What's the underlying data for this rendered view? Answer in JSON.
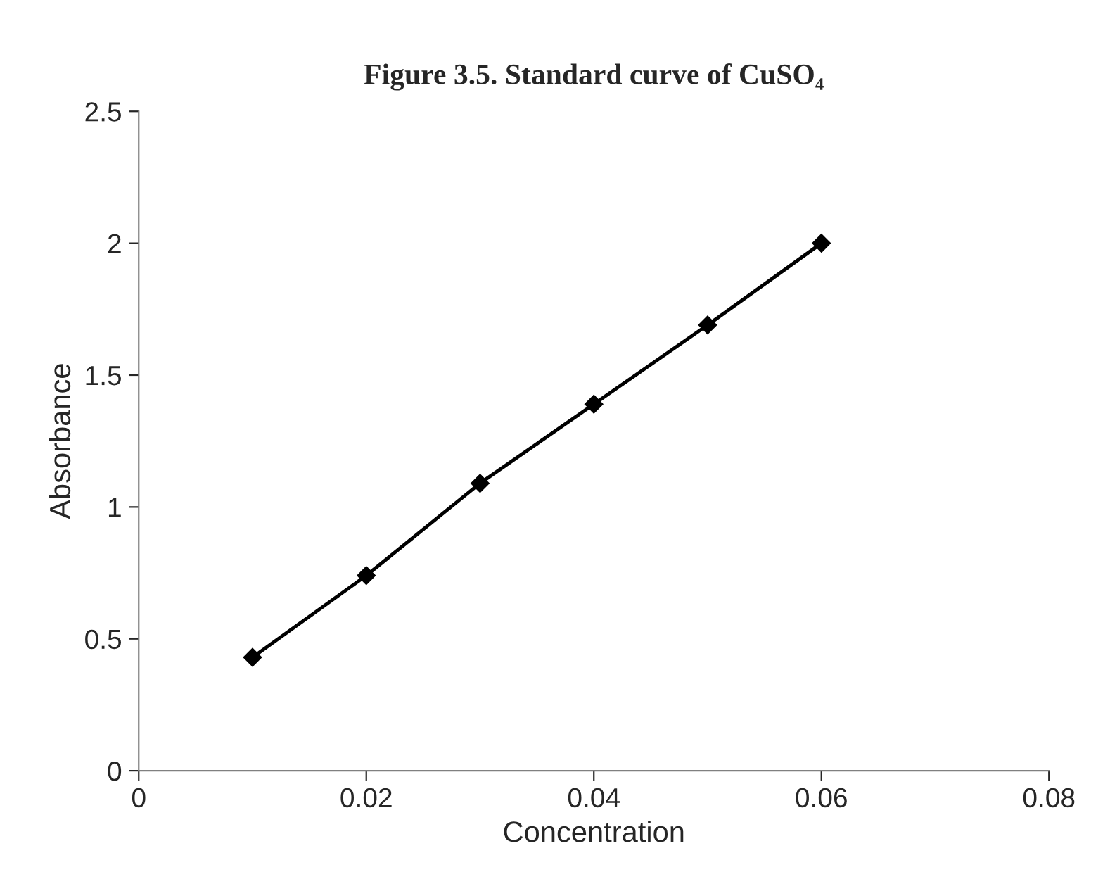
{
  "chart_data": {
    "type": "line",
    "title": "Figure 3.5. Standard curve of CuSO₄",
    "xlabel": "Concentration",
    "ylabel": "Absorbance",
    "x": [
      0.01,
      0.02,
      0.03,
      0.04,
      0.05,
      0.06
    ],
    "series": [
      {
        "color": "#000000",
        "values": [
          0.43,
          0.74,
          1.09,
          1.39,
          1.69,
          2.0
        ]
      }
    ],
    "xlim": [
      0,
      0.08
    ],
    "xticks": [
      0,
      0.02,
      0.04,
      0.06,
      0.08
    ],
    "ylim": [
      0,
      2.5
    ],
    "yticks": [
      0,
      0.5,
      1,
      1.5,
      2,
      2.5
    ],
    "grid": false,
    "legend": false,
    "marker": "diamond",
    "line_style": "solid"
  }
}
